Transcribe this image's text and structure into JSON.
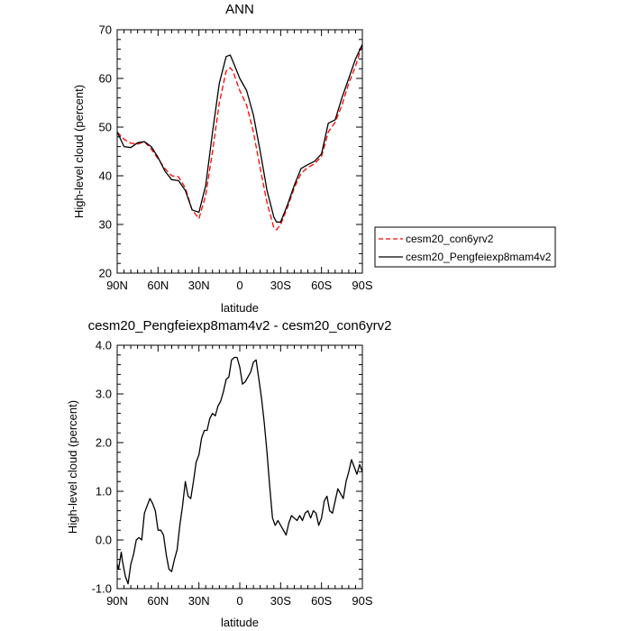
{
  "chart_data": [
    {
      "type": "line",
      "title": "ANN",
      "xlabel": "latitude",
      "ylabel": "High-level cloud (percent)",
      "xlim": [
        90,
        -90
      ],
      "ylim": [
        20,
        70
      ],
      "x_ticks": [
        90,
        60,
        30,
        0,
        -30,
        -60,
        -90
      ],
      "x_tick_labels": [
        "90N",
        "60N",
        "30N",
        "0",
        "30S",
        "60S",
        "90S"
      ],
      "y_ticks": [
        20,
        30,
        40,
        50,
        60,
        70
      ],
      "y_tick_labels": [
        "20",
        "30",
        "40",
        "50",
        "60",
        "70"
      ],
      "grid": false,
      "legend_position": "right",
      "series": [
        {
          "name": "cesm20_con6yrv2",
          "color": "#ff0000",
          "dash": "dashed",
          "x": [
            90,
            85,
            80,
            75,
            70,
            65,
            60,
            55,
            50,
            45,
            40,
            35,
            30,
            25,
            20,
            15,
            10,
            7,
            5,
            0,
            -5,
            -10,
            -15,
            -20,
            -25,
            -27,
            -30,
            -35,
            -40,
            -45,
            -50,
            -55,
            -60,
            -65,
            -70,
            -75,
            -80,
            -85,
            -90
          ],
          "y": [
            49.0,
            47.5,
            46.7,
            46.5,
            47.0,
            45.5,
            43.5,
            41.5,
            40.0,
            39.8,
            37.5,
            33.0,
            31.2,
            36.0,
            45.0,
            55.0,
            61.5,
            62.2,
            61.5,
            57.5,
            54.5,
            49.0,
            41.5,
            34.5,
            29.3,
            28.9,
            30.0,
            33.5,
            37.5,
            40.5,
            41.7,
            42.5,
            44.0,
            49.0,
            51.0,
            54.5,
            59.0,
            62.5,
            67.0
          ]
        },
        {
          "name": "cesm20_Pengfeiexp8mam4v2",
          "color": "#000000",
          "dash": "solid",
          "x": [
            90,
            85,
            80,
            75,
            70,
            65,
            60,
            55,
            50,
            45,
            40,
            35,
            30,
            25,
            20,
            15,
            10,
            7,
            5,
            0,
            -5,
            -10,
            -15,
            -20,
            -25,
            -27,
            -30,
            -35,
            -40,
            -45,
            -50,
            -55,
            -60,
            -65,
            -70,
            -75,
            -80,
            -85,
            -90
          ],
          "y": [
            49.0,
            46.0,
            45.8,
            46.8,
            47.0,
            46.0,
            43.8,
            41.0,
            39.2,
            39.0,
            37.0,
            33.0,
            32.5,
            38.0,
            49.0,
            59.0,
            64.5,
            64.8,
            63.5,
            60.0,
            57.5,
            52.5,
            45.0,
            37.0,
            31.5,
            30.5,
            30.5,
            34.0,
            38.0,
            41.5,
            42.3,
            43.0,
            44.5,
            50.8,
            51.5,
            56.0,
            60.0,
            64.0,
            67.0
          ]
        }
      ]
    },
    {
      "type": "line",
      "title": "cesm20_Pengfeiexp8mam4v2 - cesm20_con6yrv2",
      "xlabel": "latitude",
      "ylabel": "High-level cloud (percent)",
      "xlim": [
        90,
        -90
      ],
      "ylim": [
        -1.0,
        4.0
      ],
      "x_ticks": [
        90,
        60,
        30,
        0,
        -30,
        -60,
        -90
      ],
      "x_tick_labels": [
        "90N",
        "60N",
        "30N",
        "0",
        "30S",
        "60S",
        "90S"
      ],
      "y_ticks": [
        -1.0,
        0.0,
        1.0,
        2.0,
        3.0,
        4.0
      ],
      "y_tick_labels": [
        "-1.0",
        "0.0",
        "1.0",
        "2.0",
        "3.0",
        "4.0"
      ],
      "grid": false,
      "series": [
        {
          "color": "#000000",
          "dash": "solid",
          "x": [
            90,
            89,
            87,
            86,
            84,
            82,
            80,
            78,
            76,
            74,
            72,
            70,
            68,
            66,
            64,
            62,
            60,
            58,
            56,
            54,
            52,
            50,
            48,
            46,
            44,
            42,
            40,
            38,
            36,
            34,
            32,
            30,
            28,
            26,
            24,
            22,
            20,
            18,
            16,
            14,
            12,
            10,
            8,
            6,
            4,
            2,
            0,
            -2,
            -4,
            -6,
            -8,
            -10,
            -12,
            -14,
            -16,
            -18,
            -20,
            -22,
            -24,
            -26,
            -28,
            -30,
            -32,
            -34,
            -36,
            -38,
            -40,
            -42,
            -44,
            -46,
            -48,
            -50,
            -52,
            -54,
            -56,
            -58,
            -60,
            -62,
            -64,
            -66,
            -68,
            -70,
            -72,
            -74,
            -76,
            -78,
            -80,
            -82,
            -84,
            -86,
            -88,
            -90
          ],
          "y": [
            -0.5,
            -0.6,
            -0.25,
            -0.45,
            -0.75,
            -0.9,
            -0.5,
            -0.3,
            0.0,
            0.05,
            0.0,
            0.55,
            0.7,
            0.85,
            0.75,
            0.6,
            0.2,
            0.2,
            0.1,
            -0.3,
            -0.6,
            -0.65,
            -0.4,
            -0.2,
            0.3,
            0.7,
            1.2,
            0.9,
            0.85,
            1.2,
            1.6,
            1.75,
            2.1,
            2.25,
            2.25,
            2.5,
            2.6,
            2.55,
            2.75,
            2.85,
            3.05,
            3.3,
            3.35,
            3.7,
            3.75,
            3.75,
            3.55,
            3.2,
            3.25,
            3.35,
            3.45,
            3.65,
            3.7,
            3.3,
            2.9,
            2.4,
            1.8,
            1.1,
            0.45,
            0.3,
            0.4,
            0.3,
            0.2,
            0.1,
            0.35,
            0.5,
            0.45,
            0.4,
            0.5,
            0.4,
            0.55,
            0.6,
            0.45,
            0.6,
            0.55,
            0.3,
            0.45,
            0.8,
            0.9,
            0.6,
            0.55,
            0.8,
            1.05,
            0.95,
            0.85,
            1.2,
            1.4,
            1.65,
            1.5,
            1.35,
            1.55,
            1.4
          ]
        }
      ]
    }
  ]
}
